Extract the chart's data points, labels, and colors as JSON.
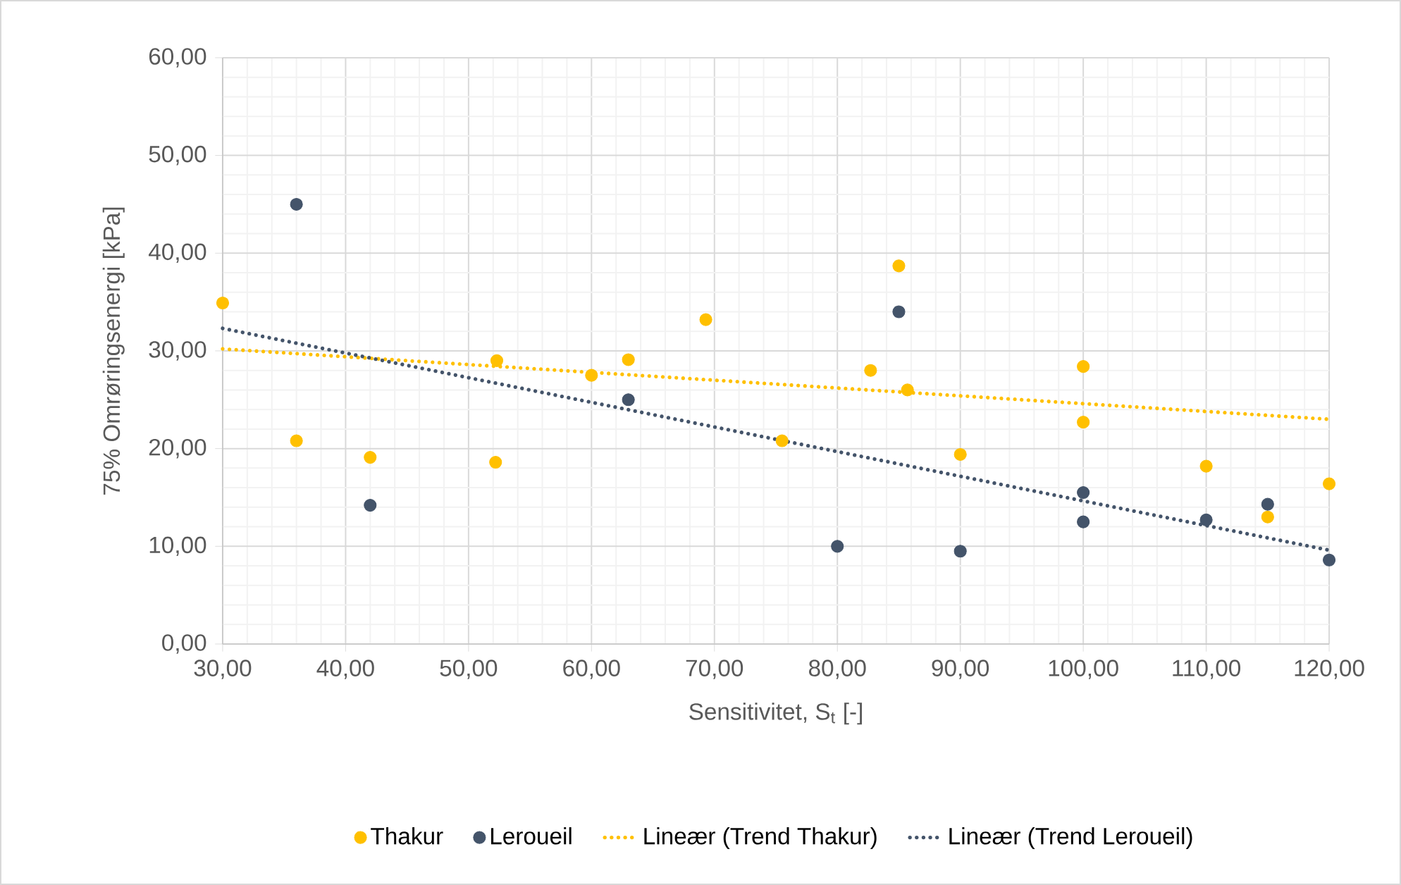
{
  "chart_data": {
    "type": "scatter",
    "xlabel": "Sensitivitet, S$_{t}$ [-]",
    "ylabel": "75% Omrøringsenergi [kPa]",
    "xlim": [
      30,
      120
    ],
    "ylim": [
      0,
      60
    ],
    "xticks": [
      {
        "value": 30,
        "label": "30,00"
      },
      {
        "value": 40,
        "label": "40,00"
      },
      {
        "value": 50,
        "label": "50,00"
      },
      {
        "value": 60,
        "label": "60,00"
      },
      {
        "value": 70,
        "label": "70,00"
      },
      {
        "value": 80,
        "label": "80,00"
      },
      {
        "value": 90,
        "label": "90,00"
      },
      {
        "value": 100,
        "label": "100,00"
      },
      {
        "value": 110,
        "label": "110,00"
      },
      {
        "value": 120,
        "label": "120,00"
      }
    ],
    "yticks": [
      {
        "value": 0,
        "label": "0,00"
      },
      {
        "value": 10,
        "label": "10,00"
      },
      {
        "value": 20,
        "label": "20,00"
      },
      {
        "value": 30,
        "label": "30,00"
      },
      {
        "value": 40,
        "label": "40,00"
      },
      {
        "value": 50,
        "label": "50,00"
      },
      {
        "value": 60,
        "label": "60,00"
      }
    ],
    "grid": true,
    "legend": "bottom",
    "series": [
      {
        "name": "Thakur",
        "color": "#ffc000",
        "marker": "circle",
        "x": [
          30,
          36,
          42,
          52.2,
          52.3,
          60,
          63,
          69.3,
          75.5,
          82.7,
          85,
          85.7,
          90,
          100,
          100,
          110,
          115,
          120
        ],
        "values": [
          34.9,
          20.8,
          19.1,
          18.6,
          29.0,
          27.5,
          29.1,
          33.2,
          20.8,
          28.0,
          38.7,
          26.0,
          19.4,
          28.4,
          22.7,
          18.2,
          13.0,
          16.4
        ]
      },
      {
        "name": "Leroueil",
        "color": "#44546a",
        "marker": "circle",
        "x": [
          36,
          42,
          63,
          80,
          85,
          90,
          100,
          100,
          110,
          115,
          120
        ],
        "values": [
          45.0,
          14.2,
          25.0,
          10.0,
          34.0,
          9.5,
          15.5,
          12.5,
          12.7,
          14.3,
          8.6
        ]
      },
      {
        "name": "Lineær (Trend Thakur)",
        "color": "#ffc000",
        "type": "line",
        "marker": "none",
        "line_style": "dotted",
        "x": [
          30,
          120
        ],
        "values": [
          30.2,
          23.0
        ]
      },
      {
        "name": "Lineær (Trend Leroueil)",
        "color": "#44546a",
        "type": "line",
        "marker": "none",
        "line_style": "dotted",
        "x": [
          30,
          120
        ],
        "values": [
          32.3,
          9.6
        ]
      }
    ]
  }
}
